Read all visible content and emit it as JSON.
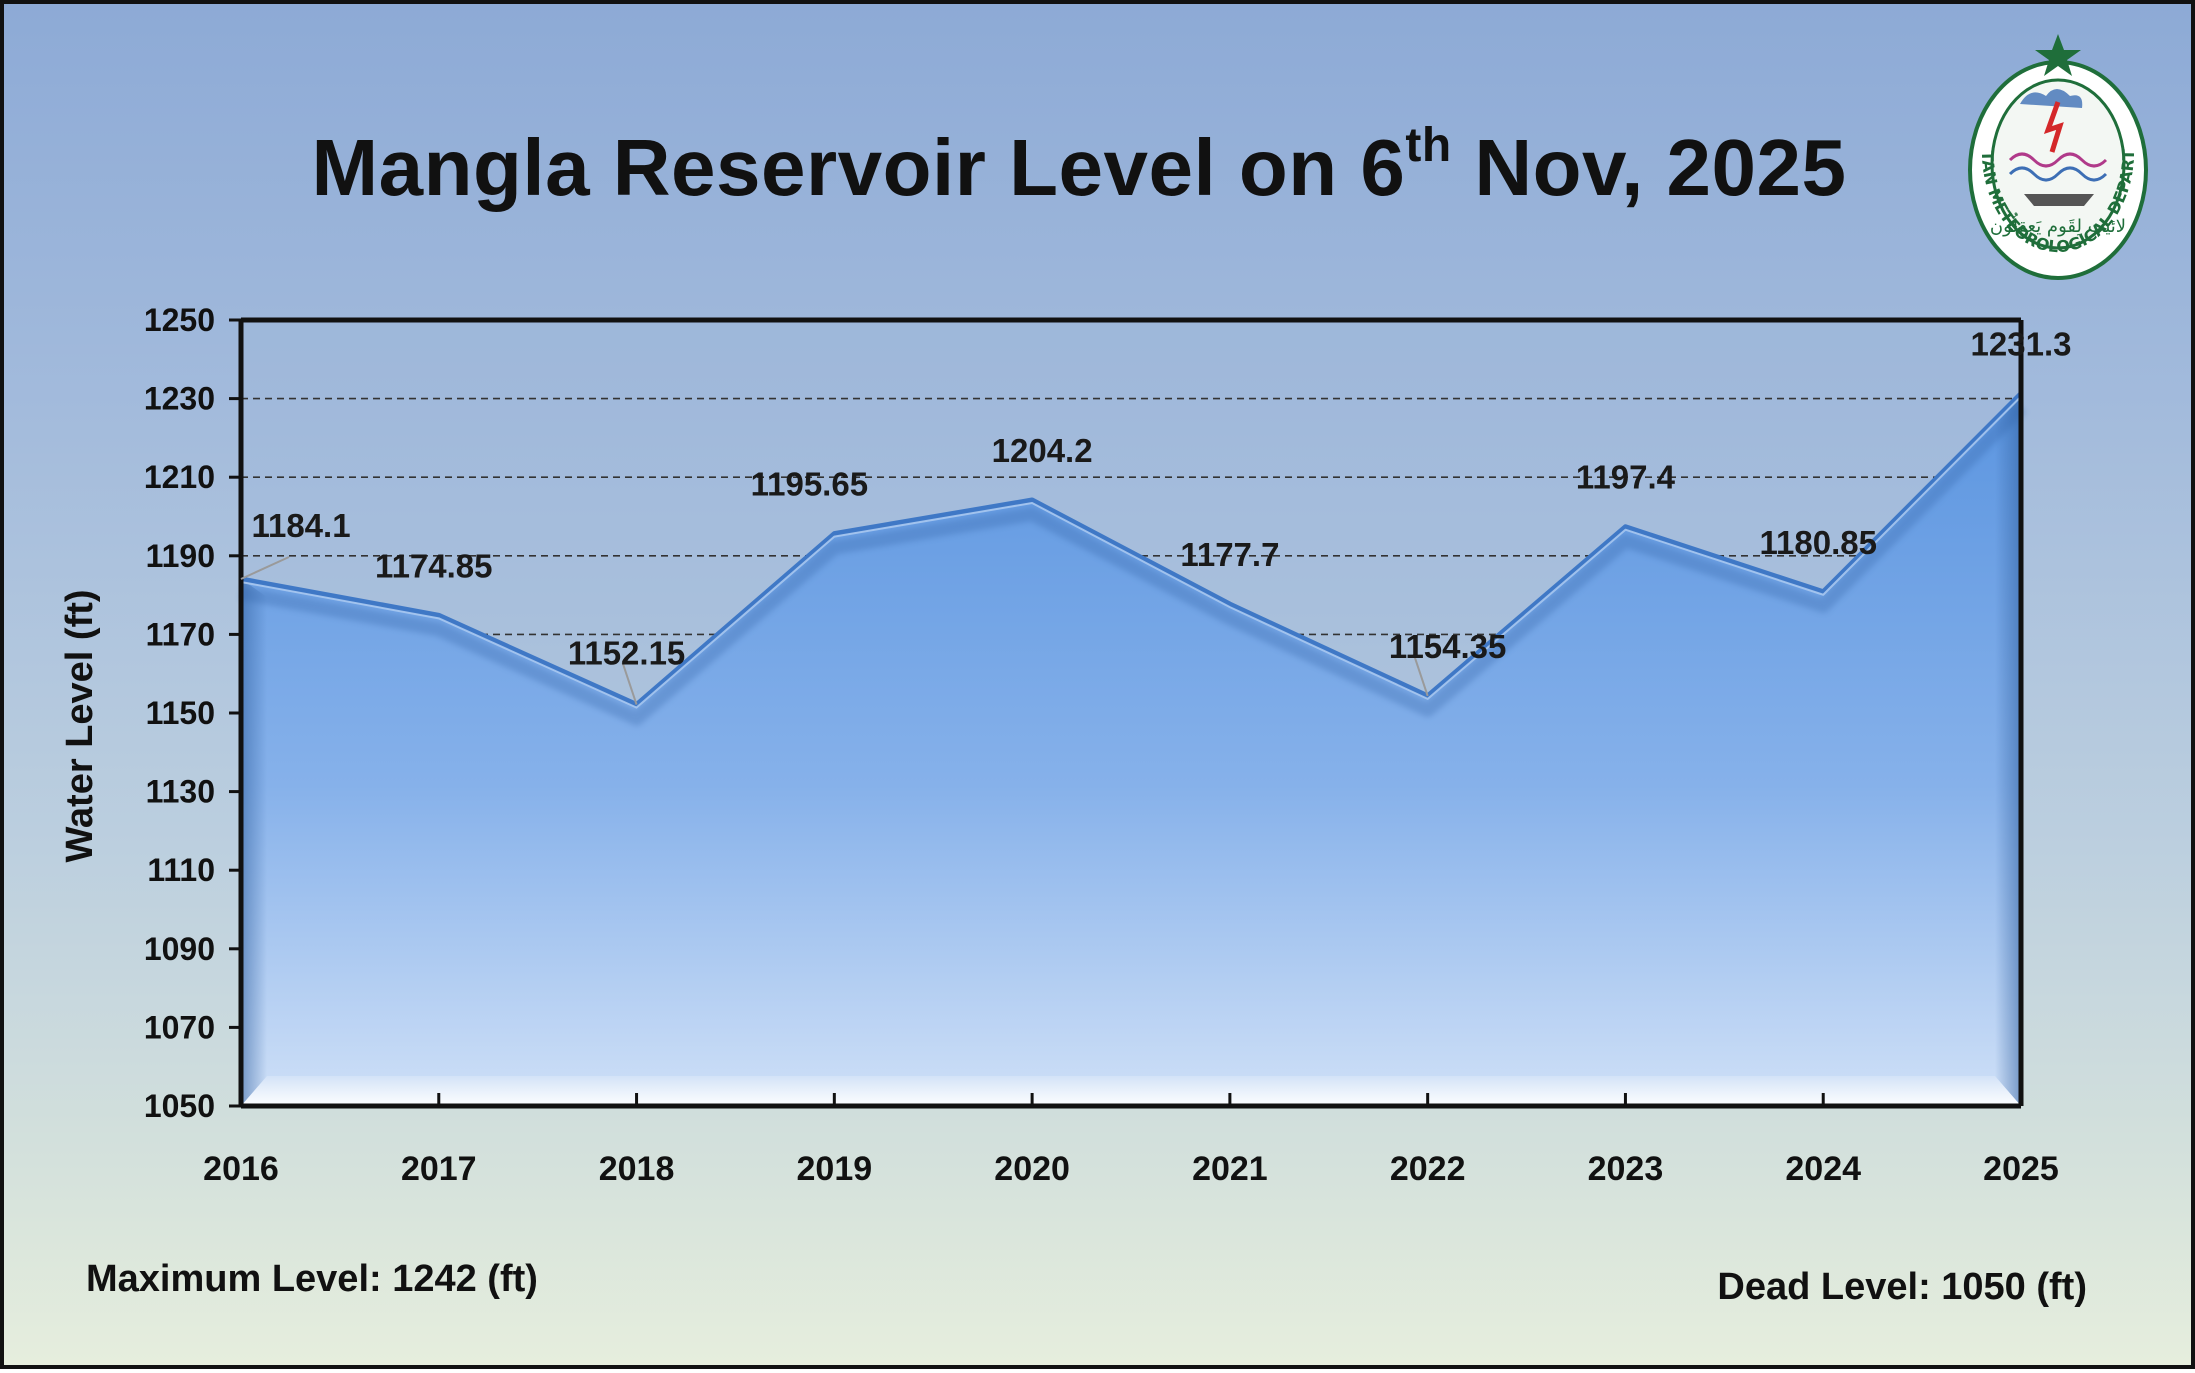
{
  "title": {
    "main": "Mangla Reservoir Level on 6",
    "sup": "th",
    "rest": " Nov, 2025"
  },
  "notes": {
    "max_level": "Maximum Level: 1242 (ft)",
    "dead_level": "Dead Level: 1050 (ft)"
  },
  "logo": {
    "text": "PAKISTAN METEOROLOGICAL DEPARTMENT",
    "urdu": "لائیت لِقَوم یَعقِلُون"
  },
  "colors": {
    "area_top": "#5b95e0",
    "area_bottom": "#cfe0f7",
    "gridline": "#333333",
    "background_top": "#8daad6",
    "background_bottom": "#e6eedd"
  },
  "chart_data": {
    "type": "area",
    "categories": [
      "2016",
      "2017",
      "2018",
      "2019",
      "2020",
      "2021",
      "2022",
      "2023",
      "2024",
      "2025"
    ],
    "values": [
      1184.1,
      1174.85,
      1152.15,
      1195.65,
      1204.2,
      1177.7,
      1154.35,
      1197.4,
      1180.85,
      1231.3
    ],
    "data_labels": [
      "1184.1",
      "1174.85",
      "1152.15",
      "1195.65",
      "1204.2",
      "1177.7",
      "1154.35",
      "1197.4",
      "1180.85",
      "1231.3"
    ],
    "ylabel": "Water Level (ft)",
    "xlabel": "",
    "ylim": [
      1050,
      1250
    ],
    "yticks": [
      1050,
      1070,
      1090,
      1110,
      1130,
      1150,
      1170,
      1190,
      1210,
      1230,
      1250
    ],
    "grid": "horizontal dashed",
    "legend": "none"
  }
}
